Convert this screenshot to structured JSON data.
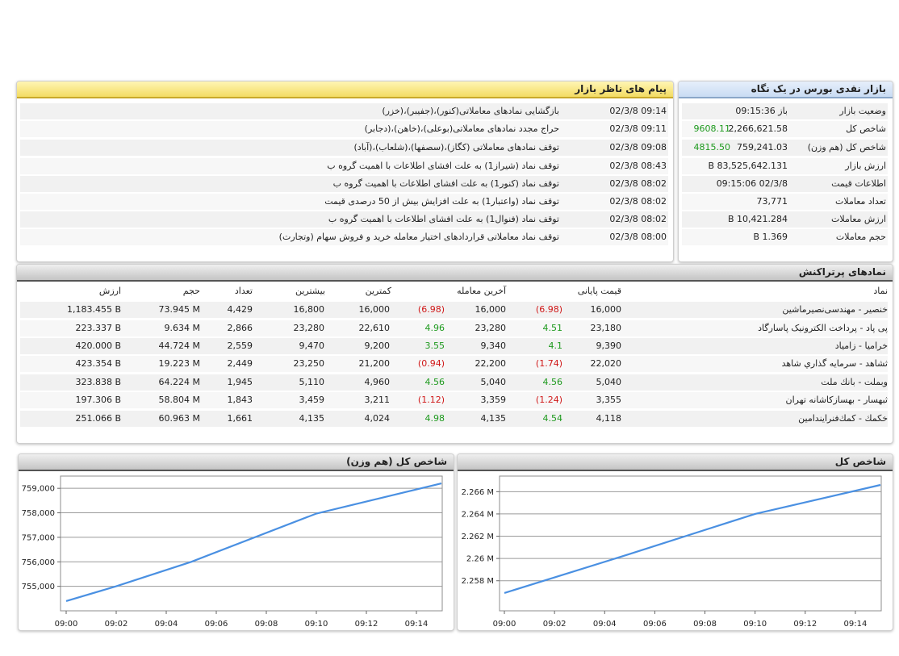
{
  "market_summary": {
    "title": "بازار نقدی بورس در یک نگاه",
    "rows": [
      {
        "label": "وضعیت بازار",
        "value": "باز 09:15:36"
      },
      {
        "label": "شاخص کل",
        "value": "2,266,621.58",
        "change": "9608.11"
      },
      {
        "label": "شاخص کل (هم وزن)",
        "value": "759,241.03",
        "change": "4815.50"
      },
      {
        "label": "ارزش بازار",
        "value": "83,525,642.131 B"
      },
      {
        "label": "اطلاعات قیمت",
        "value": "02/3/8 09:15:06"
      },
      {
        "label": "تعداد معاملات",
        "value": "73,771"
      },
      {
        "label": "ارزش معاملات",
        "value": "10,421.284 B"
      },
      {
        "label": "حجم معاملات",
        "value": "1.369 B"
      }
    ]
  },
  "messages": {
    "title": "پیام های ناظر بازار",
    "rows": [
      {
        "time": "02/3/8 09:14",
        "text": "بازگشایی نمادهای معاملاتی(کنور)،(جفیبر)،(خزر)"
      },
      {
        "time": "02/3/8 09:11",
        "text": "حراج مجدد نمادهای معاملاتی(بوعلی)،(خاهن)،(دجابر)"
      },
      {
        "time": "02/3/8 09:08",
        "text": "توقف نمادهای معاملاتی (کگاز)،(سصفها)،(شلعاب)،(آباد)"
      },
      {
        "time": "02/3/8 08:43",
        "text": "توقف نماد (شیراز1) به علت افشای اطلاعات با اهمیت گروه ب"
      },
      {
        "time": "02/3/8 08:02",
        "text": "توقف نماد (کنور1) به علت افشای اطلاعات با اهمیت گروه ب"
      },
      {
        "time": "02/3/8 08:02",
        "text": "توقف نماد (واعتبار1) به علت افزایش بیش از 50 درصدی قیمت"
      },
      {
        "time": "02/3/8 08:02",
        "text": "توقف نماد (فنوال1) به علت افشای اطلاعات با اهمیت گروه ب"
      },
      {
        "time": "02/3/8 08:00",
        "text": "توقف نماد معاملاتی قراردادهای اختیار معامله خرید و فروش سهام (وتجارت)"
      }
    ]
  },
  "active_symbols": {
    "title": "نمادهای پرتراکنش",
    "headers": [
      "نماد",
      "قیمت پایانی",
      "آخرین معامله",
      "کمترین",
      "بیشترین",
      "تعداد",
      "حجم",
      "ارزش"
    ],
    "rows": [
      [
        "خنصیر - مهندسی‌نصیرماشین",
        "16,000",
        "(6.98)",
        "16,000",
        "(6.98)",
        "16,000",
        "16,800",
        "4,429",
        "73.945 M",
        "1,183.455 B"
      ],
      [
        "پی پاد - پرداخت الکترونیک پاسارگاد",
        "23,180",
        "4.51",
        "23,280",
        "4.96",
        "22,610",
        "23,280",
        "2,866",
        "9.634 M",
        "223.337 B"
      ],
      [
        "خراميا - زامياد",
        "9,390",
        "4.1",
        "9,340",
        "3.55",
        "9,200",
        "9,470",
        "2,559",
        "44.724 M",
        "420.000 B"
      ],
      [
        "ثشاهد - سرمايه گذاري شاهد",
        "22,020",
        "(1.74)",
        "22,200",
        "(0.94)",
        "21,200",
        "23,250",
        "2,449",
        "19.223 M",
        "423.354 B"
      ],
      [
        "وبملت - بانك ملت",
        "5,040",
        "4.56",
        "5,040",
        "4.56",
        "4,960",
        "5,110",
        "1,945",
        "64.224 M",
        "323.838 B"
      ],
      [
        "ثبهسار - بهسازكاشانه تهران",
        "3,355",
        "(1.24)",
        "3,359",
        "(1.12)",
        "3,211",
        "3,459",
        "1,843",
        "58.804 M",
        "197.306 B"
      ],
      [
        "خكمك - كمك‌فنرايندامين",
        "4,118",
        "4.54",
        "4,135",
        "4.98",
        "4,024",
        "4,135",
        "1,661",
        "60.963 M",
        "251.066 B"
      ]
    ]
  },
  "chart_data": [
    {
      "type": "line",
      "title": "شاخص کل (هم وزن)",
      "x": [
        "09:00",
        "09:02",
        "09:05",
        "09:10",
        "09:15"
      ],
      "series": [
        {
          "color": "#4a90e2",
          "values": [
            754400,
            755000,
            756000,
            757970,
            759200
          ]
        }
      ],
      "xlim": [
        "09:00",
        "09:15"
      ],
      "ylim": [
        754000,
        759500
      ],
      "xticks": [
        "09:00",
        "09:02",
        "09:04",
        "09:06",
        "09:08",
        "09:10",
        "09:12",
        "09:14"
      ],
      "yticks": [
        {
          "value": 755000,
          "label": "755,000"
        },
        {
          "value": 756000,
          "label": "756,000"
        },
        {
          "value": 757000,
          "label": "757,000"
        },
        {
          "value": 758000,
          "label": "758,000"
        },
        {
          "value": 759000,
          "label": "759,000"
        }
      ],
      "grid": true
    },
    {
      "type": "line",
      "title": "شاخص کل",
      "x": [
        "09:00",
        "09:05",
        "09:10",
        "09:15"
      ],
      "series": [
        {
          "color": "#4a90e2",
          "values": [
            2256900,
            2260400,
            2264000,
            2266600
          ]
        }
      ],
      "xlim": [
        "09:00",
        "09:15"
      ],
      "ylim": [
        2255300,
        2267400
      ],
      "xticks": [
        "09:00",
        "09:02",
        "09:04",
        "09:06",
        "09:08",
        "09:10",
        "09:12",
        "09:14"
      ],
      "yticks": [
        {
          "value": 2258000,
          "label": "2.258 M"
        },
        {
          "value": 2260000,
          "label": "2.26 M"
        },
        {
          "value": 2262000,
          "label": "2.262 M"
        },
        {
          "value": 2264000,
          "label": "2.264 M"
        },
        {
          "value": 2266000,
          "label": "2.266 M"
        }
      ],
      "grid": true
    }
  ]
}
